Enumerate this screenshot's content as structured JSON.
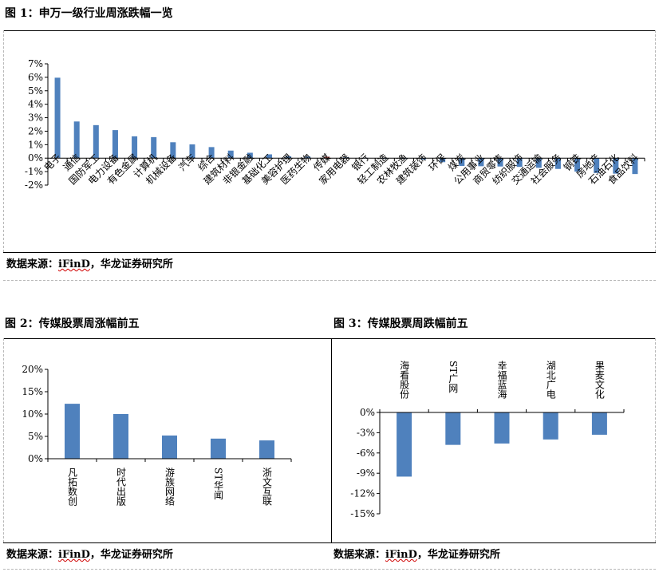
{
  "figure1": {
    "title": "图 1：申万一级行业周涨跌幅一览",
    "source_prefix": "数据来源：",
    "source_name": "iFinD",
    "source_suffix": "，华龙证券研究所"
  },
  "figure2": {
    "title": "图 2：传媒股票周涨幅前五",
    "source_prefix": "数据来源：",
    "source_name": "iFinD",
    "source_suffix": "，华龙证券研究所"
  },
  "figure3": {
    "title": "图 3：传媒股票周跌幅前五",
    "source_prefix": "数据来源：",
    "source_name": "iFinD",
    "source_suffix": "，华龙证券研究所"
  },
  "colors": {
    "bar": "#4f81bd",
    "highlight": "#c0504d",
    "axis": "#000000"
  },
  "chart_data": [
    {
      "type": "bar",
      "title": "",
      "xlabel": "",
      "ylabel": "",
      "ylim": [
        -2,
        7
      ],
      "yticks": [
        7,
        6,
        5,
        4,
        3,
        2,
        1,
        0,
        -1,
        -2
      ],
      "ytick_labels": [
        "7%",
        "6%",
        "5%",
        "4%",
        "3%",
        "2%",
        "1%",
        "0%",
        "-1%",
        "-2%"
      ],
      "categories": [
        "电子",
        "通信",
        "国防军工",
        "电力设备",
        "有色金属",
        "计算机",
        "机械设备",
        "汽车",
        "综合",
        "建筑材料",
        "非银金融",
        "基础化工",
        "美容护理",
        "医药生物",
        "传媒",
        "家用电器",
        "银行",
        "轻工制造",
        "农林牧渔",
        "建筑装饰",
        "环保",
        "煤炭",
        "公用事业",
        "商贸零售",
        "纺织服饰",
        "交通运输",
        "社会服务",
        "钢铁",
        "房地产",
        "石油石化",
        "食品饮料"
      ],
      "values": [
        5.97,
        2.72,
        2.45,
        2.08,
        1.62,
        1.56,
        1.18,
        1.02,
        0.82,
        0.56,
        0.4,
        0.28,
        0.14,
        0.12,
        0.1,
        0.06,
        0.02,
        -0.02,
        -0.05,
        -0.1,
        -0.3,
        -0.58,
        -0.6,
        -0.62,
        -0.65,
        -0.72,
        -0.8,
        -1.0,
        -1.1,
        -1.15,
        -1.18
      ],
      "highlight_category": "传媒"
    },
    {
      "type": "bar",
      "title": "",
      "xlabel": "",
      "ylabel": "",
      "ylim": [
        0,
        20
      ],
      "yticks": [
        20,
        15,
        10,
        5,
        0
      ],
      "ytick_labels": [
        "20%",
        "15%",
        "10%",
        "5%",
        "0%"
      ],
      "categories": [
        "凡拓数创",
        "时代出版",
        "游族网络",
        "ST华闻",
        "浙文互联"
      ],
      "values": [
        12.3,
        10.0,
        5.2,
        4.5,
        4.1
      ]
    },
    {
      "type": "bar",
      "title": "",
      "xlabel": "",
      "ylabel": "",
      "ylim": [
        -15,
        0
      ],
      "yticks": [
        0,
        -3,
        -6,
        -9,
        -12,
        -15
      ],
      "ytick_labels": [
        "0%",
        "-3%",
        "-6%",
        "-9%",
        "-12%",
        "-15%"
      ],
      "categories": [
        "海看股份",
        "ST广网",
        "幸福蓝海",
        "湖北广电",
        "果麦文化"
      ],
      "values": [
        -9.5,
        -4.8,
        -4.6,
        -4.0,
        -3.3
      ]
    }
  ]
}
